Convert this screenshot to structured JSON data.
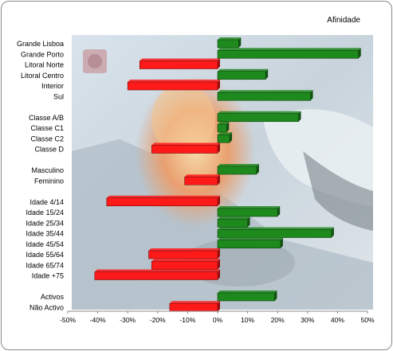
{
  "chart_data": {
    "type": "bar",
    "orientation": "horizontal",
    "title": "Afinidade",
    "categories": [
      "Grande Lisboa",
      "Grande Porto",
      "Litoral Norte",
      "Litoral Centro",
      "Interior",
      "Sul",
      "Classe A/B",
      "Classe C1",
      "Classe C2",
      "Classe D",
      "Masculino",
      "Feminino",
      "Idade 4/14",
      "Idade 15/24",
      "Idade 25/34",
      "Idade 35/44",
      "Idade 45/54",
      "Idade 55/64",
      "Idade 65/74",
      "Idade +75",
      "Activos",
      "Não Activo"
    ],
    "groups": [
      6,
      4,
      2,
      8,
      2
    ],
    "values": [
      7,
      47,
      -26,
      16,
      -30,
      31,
      27,
      3,
      4,
      -22,
      13,
      -11,
      -37,
      20,
      10,
      38,
      21,
      -23,
      -22,
      -41,
      19,
      -16
    ],
    "xlim": [
      -50,
      50
    ],
    "xticks": [
      "-50%",
      "-40%",
      "-30%",
      "-20%",
      "-10%",
      "0%",
      "10%",
      "20%",
      "30%",
      "40%",
      "50%"
    ],
    "colors": {
      "positive": "#1e8a1e",
      "negative": "#ff1a1a"
    },
    "grid": false,
    "legend": "none"
  }
}
